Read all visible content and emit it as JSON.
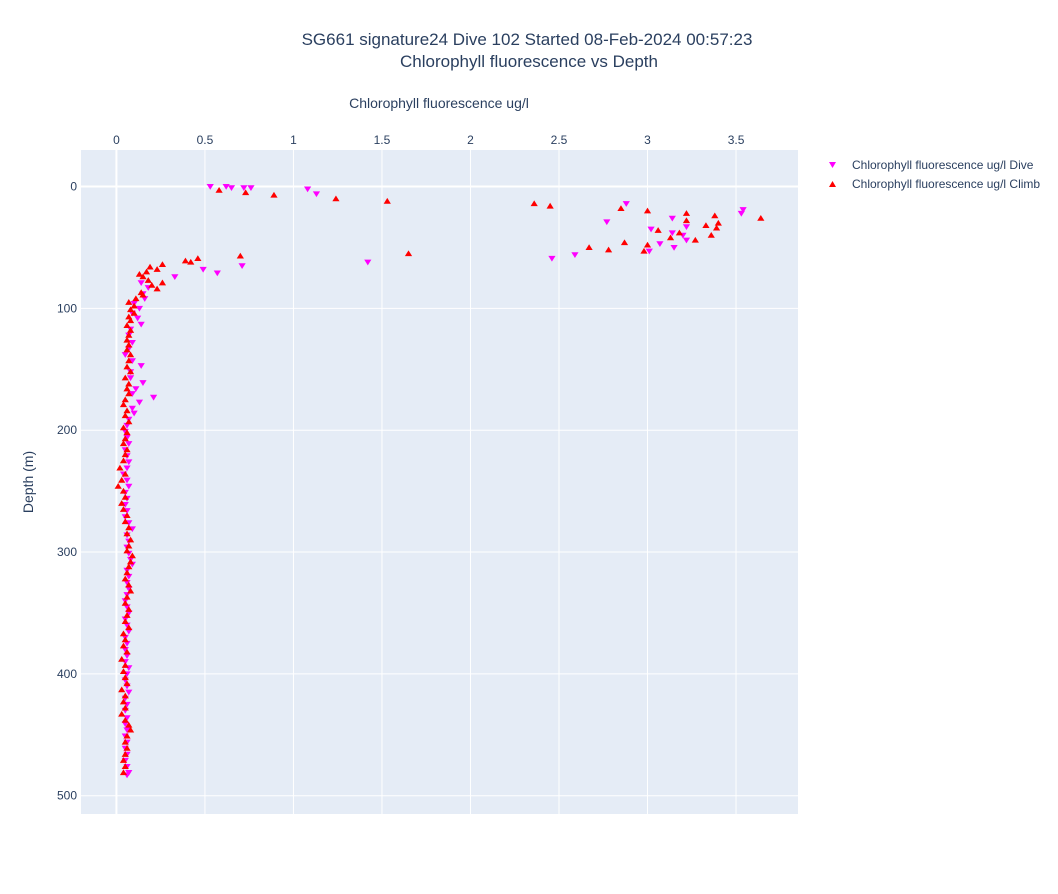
{
  "chart_data": {
    "type": "scatter",
    "title": "SG661 signature24 Dive 102 Started 08-Feb-2024 00:57:23",
    "subtitle": "Chlorophyll fluorescence vs Depth",
    "xlabel": "Chlorophyll fluorescence ug/l",
    "ylabel": "Depth (m)",
    "xlim": [
      -0.2,
      3.85
    ],
    "ylim": [
      -30,
      515
    ],
    "y_reversed": true,
    "x_axis_position": "top",
    "x_ticks": [
      "0",
      "0.5",
      "1",
      "1.5",
      "2",
      "2.5",
      "3",
      "3.5"
    ],
    "y_ticks": [
      "0",
      "100",
      "200",
      "300",
      "400",
      "500"
    ],
    "grid": true,
    "legend_position": "top-right",
    "series": [
      {
        "name": "Chlorophyll fluorescence ug/l Dive",
        "color": "#ff00ff",
        "marker": "triangle-down",
        "points": [
          [
            0.53,
            0
          ],
          [
            0.62,
            0
          ],
          [
            0.65,
            1
          ],
          [
            0.72,
            1
          ],
          [
            0.76,
            1
          ],
          [
            1.08,
            2
          ],
          [
            1.13,
            6
          ],
          [
            2.88,
            14
          ],
          [
            3.54,
            19
          ],
          [
            3.53,
            22
          ],
          [
            2.77,
            29
          ],
          [
            3.02,
            35
          ],
          [
            3.14,
            26
          ],
          [
            3.22,
            33
          ],
          [
            3.14,
            38
          ],
          [
            3.2,
            40
          ],
          [
            3.22,
            44
          ],
          [
            3.07,
            47
          ],
          [
            3.15,
            50
          ],
          [
            3.01,
            53
          ],
          [
            2.59,
            56
          ],
          [
            2.46,
            59
          ],
          [
            1.42,
            62
          ],
          [
            0.71,
            65
          ],
          [
            0.49,
            68
          ],
          [
            0.57,
            71
          ],
          [
            0.33,
            74
          ],
          [
            0.14,
            79
          ],
          [
            0.18,
            83
          ],
          [
            0.15,
            88
          ],
          [
            0.16,
            92
          ],
          [
            0.1,
            96
          ],
          [
            0.13,
            100
          ],
          [
            0.09,
            104
          ],
          [
            0.12,
            108
          ],
          [
            0.14,
            113
          ],
          [
            0.08,
            117
          ],
          [
            0.07,
            122
          ],
          [
            0.09,
            128
          ],
          [
            0.07,
            133
          ],
          [
            0.05,
            138
          ],
          [
            0.09,
            143
          ],
          [
            0.14,
            147
          ],
          [
            0.08,
            152
          ],
          [
            0.08,
            157
          ],
          [
            0.15,
            161
          ],
          [
            0.11,
            166
          ],
          [
            0.09,
            170
          ],
          [
            0.21,
            173
          ],
          [
            0.13,
            177
          ],
          [
            0.09,
            182
          ],
          [
            0.1,
            186
          ],
          [
            0.07,
            191
          ],
          [
            0.06,
            196
          ],
          [
            0.05,
            201
          ],
          [
            0.06,
            206
          ],
          [
            0.07,
            211
          ],
          [
            0.05,
            216
          ],
          [
            0.06,
            221
          ],
          [
            0.07,
            226
          ],
          [
            0.06,
            231
          ],
          [
            0.04,
            236
          ],
          [
            0.06,
            241
          ],
          [
            0.07,
            246
          ],
          [
            0.05,
            251
          ],
          [
            0.06,
            256
          ],
          [
            0.05,
            261
          ],
          [
            0.06,
            266
          ],
          [
            0.05,
            271
          ],
          [
            0.07,
            276
          ],
          [
            0.09,
            281
          ],
          [
            0.06,
            286
          ],
          [
            0.07,
            291
          ],
          [
            0.06,
            296
          ],
          [
            0.07,
            301
          ],
          [
            0.08,
            306
          ],
          [
            0.09,
            310
          ],
          [
            0.06,
            315
          ],
          [
            0.07,
            320
          ],
          [
            0.06,
            325
          ],
          [
            0.07,
            330
          ],
          [
            0.06,
            335
          ],
          [
            0.05,
            340
          ],
          [
            0.06,
            345
          ],
          [
            0.07,
            350
          ],
          [
            0.05,
            355
          ],
          [
            0.06,
            360
          ],
          [
            0.07,
            365
          ],
          [
            0.05,
            370
          ],
          [
            0.06,
            375
          ],
          [
            0.05,
            380
          ],
          [
            0.06,
            385
          ],
          [
            0.05,
            390
          ],
          [
            0.07,
            395
          ],
          [
            0.06,
            400
          ],
          [
            0.05,
            405
          ],
          [
            0.06,
            410
          ],
          [
            0.07,
            415
          ],
          [
            0.05,
            420
          ],
          [
            0.06,
            425
          ],
          [
            0.05,
            430
          ],
          [
            0.06,
            436
          ],
          [
            0.05,
            441
          ],
          [
            0.06,
            446
          ],
          [
            0.05,
            451
          ],
          [
            0.06,
            456
          ],
          [
            0.05,
            461
          ],
          [
            0.06,
            466
          ],
          [
            0.05,
            471
          ],
          [
            0.06,
            476
          ],
          [
            0.07,
            481
          ],
          [
            0.06,
            483
          ]
        ]
      },
      {
        "name": "Chlorophyll fluorescence ug/l Climb",
        "color": "#ff0000",
        "marker": "triangle-up",
        "points": [
          [
            0.58,
            3
          ],
          [
            0.73,
            5
          ],
          [
            0.89,
            7
          ],
          [
            1.24,
            10
          ],
          [
            1.53,
            12
          ],
          [
            2.36,
            14
          ],
          [
            2.45,
            16
          ],
          [
            2.85,
            18
          ],
          [
            3.0,
            20
          ],
          [
            3.22,
            22
          ],
          [
            3.38,
            24
          ],
          [
            3.64,
            26
          ],
          [
            3.22,
            28
          ],
          [
            3.4,
            30
          ],
          [
            3.33,
            32
          ],
          [
            3.39,
            34
          ],
          [
            3.06,
            36
          ],
          [
            3.18,
            38
          ],
          [
            3.36,
            40
          ],
          [
            3.13,
            42
          ],
          [
            3.27,
            44
          ],
          [
            2.87,
            46
          ],
          [
            3.0,
            48
          ],
          [
            2.67,
            50
          ],
          [
            2.78,
            52
          ],
          [
            2.98,
            53
          ],
          [
            1.65,
            55
          ],
          [
            0.7,
            57
          ],
          [
            0.46,
            59
          ],
          [
            0.39,
            61
          ],
          [
            0.42,
            62
          ],
          [
            0.26,
            64
          ],
          [
            0.19,
            66
          ],
          [
            0.23,
            68
          ],
          [
            0.17,
            70
          ],
          [
            0.13,
            72
          ],
          [
            0.15,
            74
          ],
          [
            0.18,
            77
          ],
          [
            0.26,
            79
          ],
          [
            0.2,
            81
          ],
          [
            0.23,
            84
          ],
          [
            0.14,
            87
          ],
          [
            0.15,
            89
          ],
          [
            0.11,
            92
          ],
          [
            0.07,
            95
          ],
          [
            0.1,
            98
          ],
          [
            0.08,
            101
          ],
          [
            0.1,
            104
          ],
          [
            0.07,
            107
          ],
          [
            0.08,
            110
          ],
          [
            0.06,
            114
          ],
          [
            0.08,
            118
          ],
          [
            0.07,
            122
          ],
          [
            0.06,
            126
          ],
          [
            0.07,
            130
          ],
          [
            0.06,
            134
          ],
          [
            0.08,
            138
          ],
          [
            0.07,
            143
          ],
          [
            0.06,
            148
          ],
          [
            0.08,
            152
          ],
          [
            0.05,
            157
          ],
          [
            0.07,
            162
          ],
          [
            0.06,
            166
          ],
          [
            0.07,
            170
          ],
          [
            0.05,
            175
          ],
          [
            0.04,
            179
          ],
          [
            0.06,
            184
          ],
          [
            0.05,
            188
          ],
          [
            0.07,
            193
          ],
          [
            0.04,
            198
          ],
          [
            0.06,
            202
          ],
          [
            0.05,
            207
          ],
          [
            0.04,
            211
          ],
          [
            0.06,
            216
          ],
          [
            0.05,
            220
          ],
          [
            0.04,
            225
          ],
          [
            0.02,
            231
          ],
          [
            0.05,
            236
          ],
          [
            0.03,
            241
          ],
          [
            0.01,
            246
          ],
          [
            0.04,
            250
          ],
          [
            0.05,
            255
          ],
          [
            0.03,
            260
          ],
          [
            0.04,
            265
          ],
          [
            0.06,
            270
          ],
          [
            0.05,
            275
          ],
          [
            0.07,
            280
          ],
          [
            0.06,
            285
          ],
          [
            0.08,
            290
          ],
          [
            0.07,
            295
          ],
          [
            0.06,
            299
          ],
          [
            0.09,
            303
          ],
          [
            0.08,
            308
          ],
          [
            0.07,
            312
          ],
          [
            0.06,
            317
          ],
          [
            0.05,
            322
          ],
          [
            0.07,
            327
          ],
          [
            0.08,
            332
          ],
          [
            0.06,
            337
          ],
          [
            0.05,
            342
          ],
          [
            0.07,
            347
          ],
          [
            0.06,
            352
          ],
          [
            0.05,
            357
          ],
          [
            0.07,
            362
          ],
          [
            0.04,
            367
          ],
          [
            0.05,
            372
          ],
          [
            0.04,
            377
          ],
          [
            0.06,
            382
          ],
          [
            0.03,
            388
          ],
          [
            0.05,
            393
          ],
          [
            0.04,
            398
          ],
          [
            0.05,
            403
          ],
          [
            0.06,
            408
          ],
          [
            0.03,
            413
          ],
          [
            0.05,
            418
          ],
          [
            0.04,
            423
          ],
          [
            0.05,
            428
          ],
          [
            0.03,
            433
          ],
          [
            0.05,
            438
          ],
          [
            0.07,
            442
          ],
          [
            0.08,
            446
          ],
          [
            0.06,
            451
          ],
          [
            0.05,
            456
          ],
          [
            0.06,
            461
          ],
          [
            0.05,
            466
          ],
          [
            0.04,
            471
          ],
          [
            0.05,
            476
          ],
          [
            0.04,
            481
          ]
        ]
      }
    ]
  }
}
